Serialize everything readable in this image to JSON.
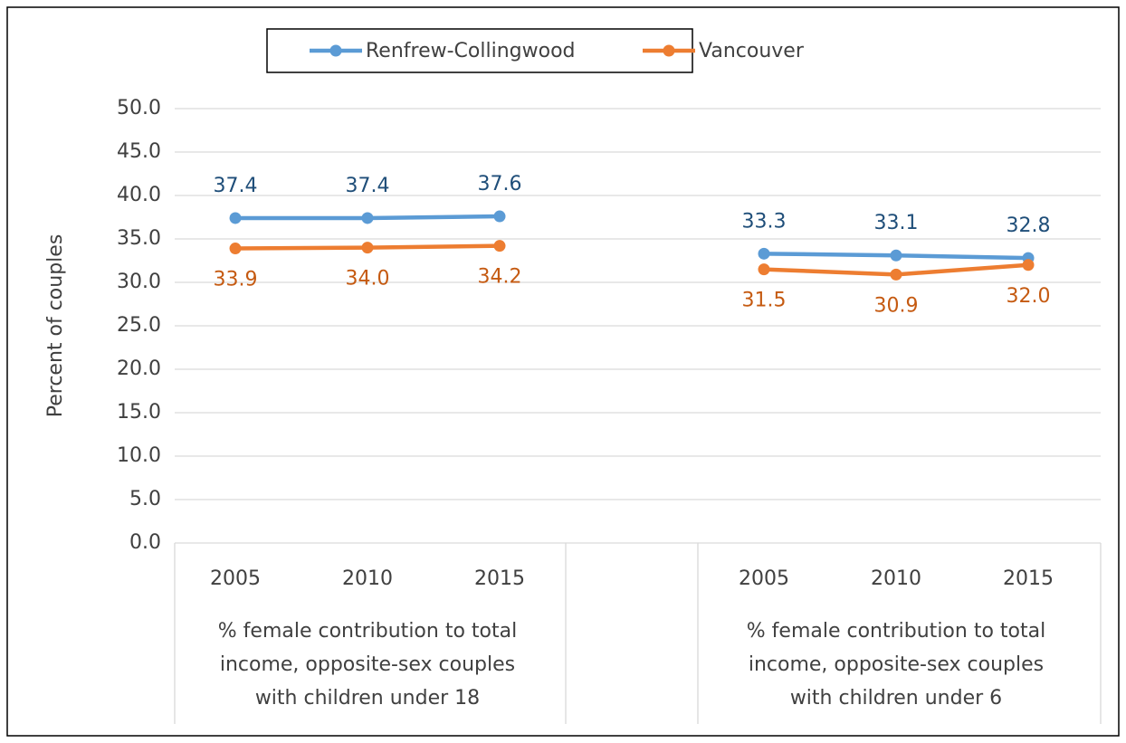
{
  "chart_data": {
    "type": "line",
    "y_label": "Percent of couples",
    "categories": [
      "2005",
      "2010",
      "2015",
      null,
      "2005",
      "2010",
      "2015"
    ],
    "groups": [
      {
        "label": [
          "% female contribution to total",
          "income, opposite-sex couples",
          "with children under 18"
        ]
      },
      {
        "label": [
          "% female contribution to total",
          "income, opposite-sex couples",
          "with children under 6"
        ]
      }
    ],
    "series": [
      {
        "name": "Renfrew-Collingwood",
        "color": "#5b9bd5",
        "label_color": "#1f4e79",
        "label_position": "above",
        "values": [
          37.4,
          37.4,
          37.6,
          null,
          33.3,
          33.1,
          32.8
        ],
        "value_labels": [
          "37.4",
          "37.4",
          "37.6",
          null,
          "33.3",
          "33.1",
          "32.8"
        ]
      },
      {
        "name": "Vancouver",
        "color": "#ed7d31",
        "label_color": "#c55a11",
        "label_position": "below",
        "values": [
          33.9,
          34.0,
          34.2,
          null,
          31.5,
          30.9,
          32.0
        ],
        "value_labels": [
          "33.9",
          "34.0",
          "34.2",
          null,
          "31.5",
          "30.9",
          "32.0"
        ]
      }
    ],
    "ylim": [
      0,
      50
    ],
    "yticks": [
      {
        "value": 0,
        "label": "0.0"
      },
      {
        "value": 5,
        "label": "5.0"
      },
      {
        "value": 10,
        "label": "10.0"
      },
      {
        "value": 15,
        "label": "15.0"
      },
      {
        "value": 20,
        "label": "20.0"
      },
      {
        "value": 25,
        "label": "25.0"
      },
      {
        "value": 30,
        "label": "30.0"
      },
      {
        "value": 35,
        "label": "35.0"
      },
      {
        "value": 40,
        "label": "40.0"
      },
      {
        "value": 45,
        "label": "45.0"
      },
      {
        "value": 50,
        "label": "50.0"
      }
    ],
    "grid": true,
    "legend": "top"
  }
}
